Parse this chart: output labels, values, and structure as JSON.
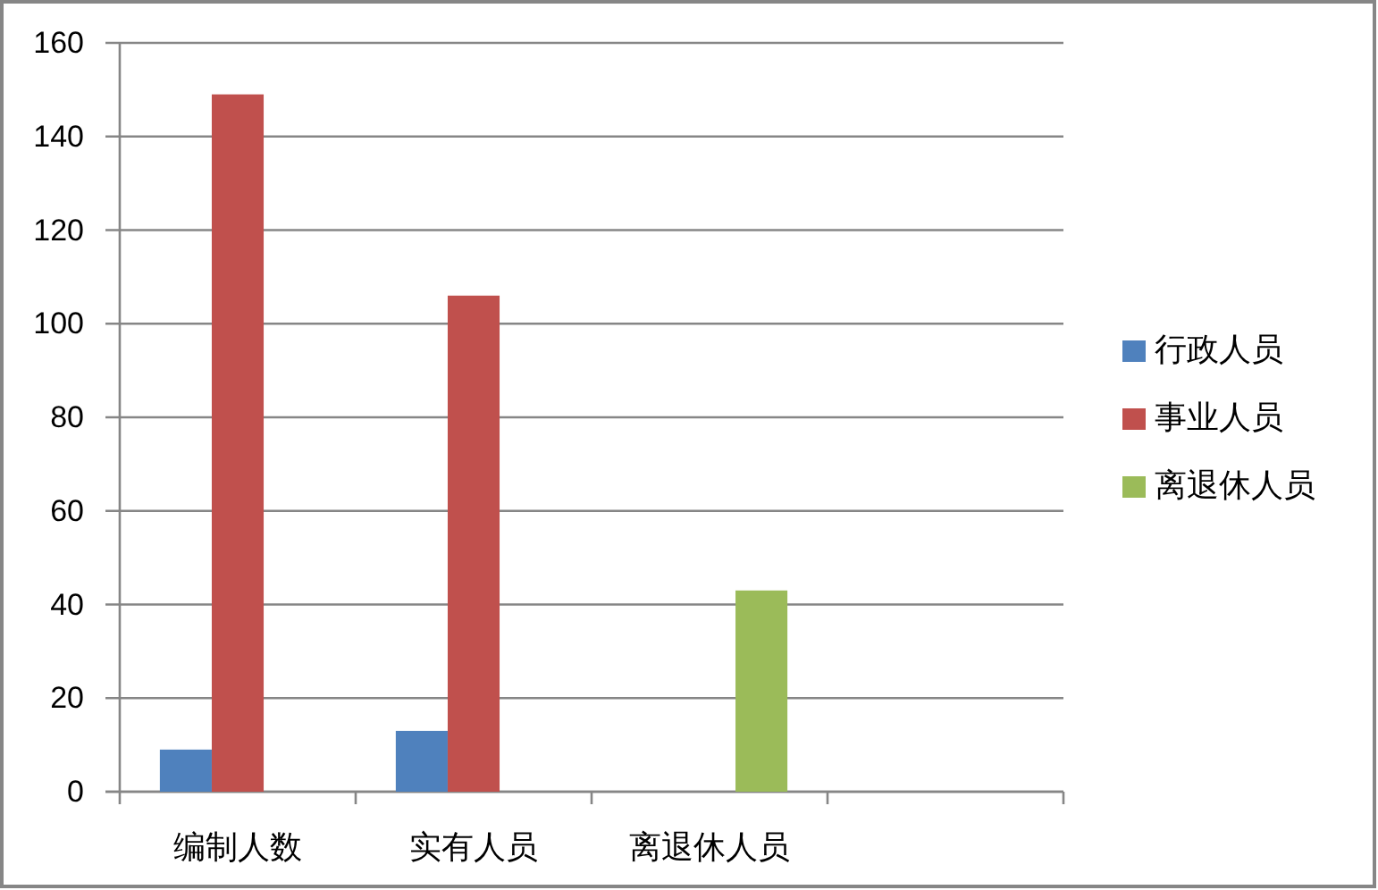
{
  "chart_data": {
    "type": "bar",
    "categories": [
      "编制人数",
      "实有人员",
      "离退休人员",
      null
    ],
    "series": [
      {
        "name": "行政人员",
        "color": "#4f81bd",
        "values": [
          9,
          13,
          null,
          null
        ]
      },
      {
        "name": "事业人员",
        "color": "#c0504d",
        "values": [
          149,
          106,
          null,
          null
        ]
      },
      {
        "name": "离退休人员",
        "color": "#9bbb59",
        "values": [
          null,
          null,
          43,
          null
        ]
      }
    ],
    "ylim": [
      0,
      160
    ],
    "yticks": [
      0,
      20,
      40,
      60,
      80,
      100,
      120,
      140,
      160
    ],
    "grid": "y",
    "legend": "right"
  }
}
